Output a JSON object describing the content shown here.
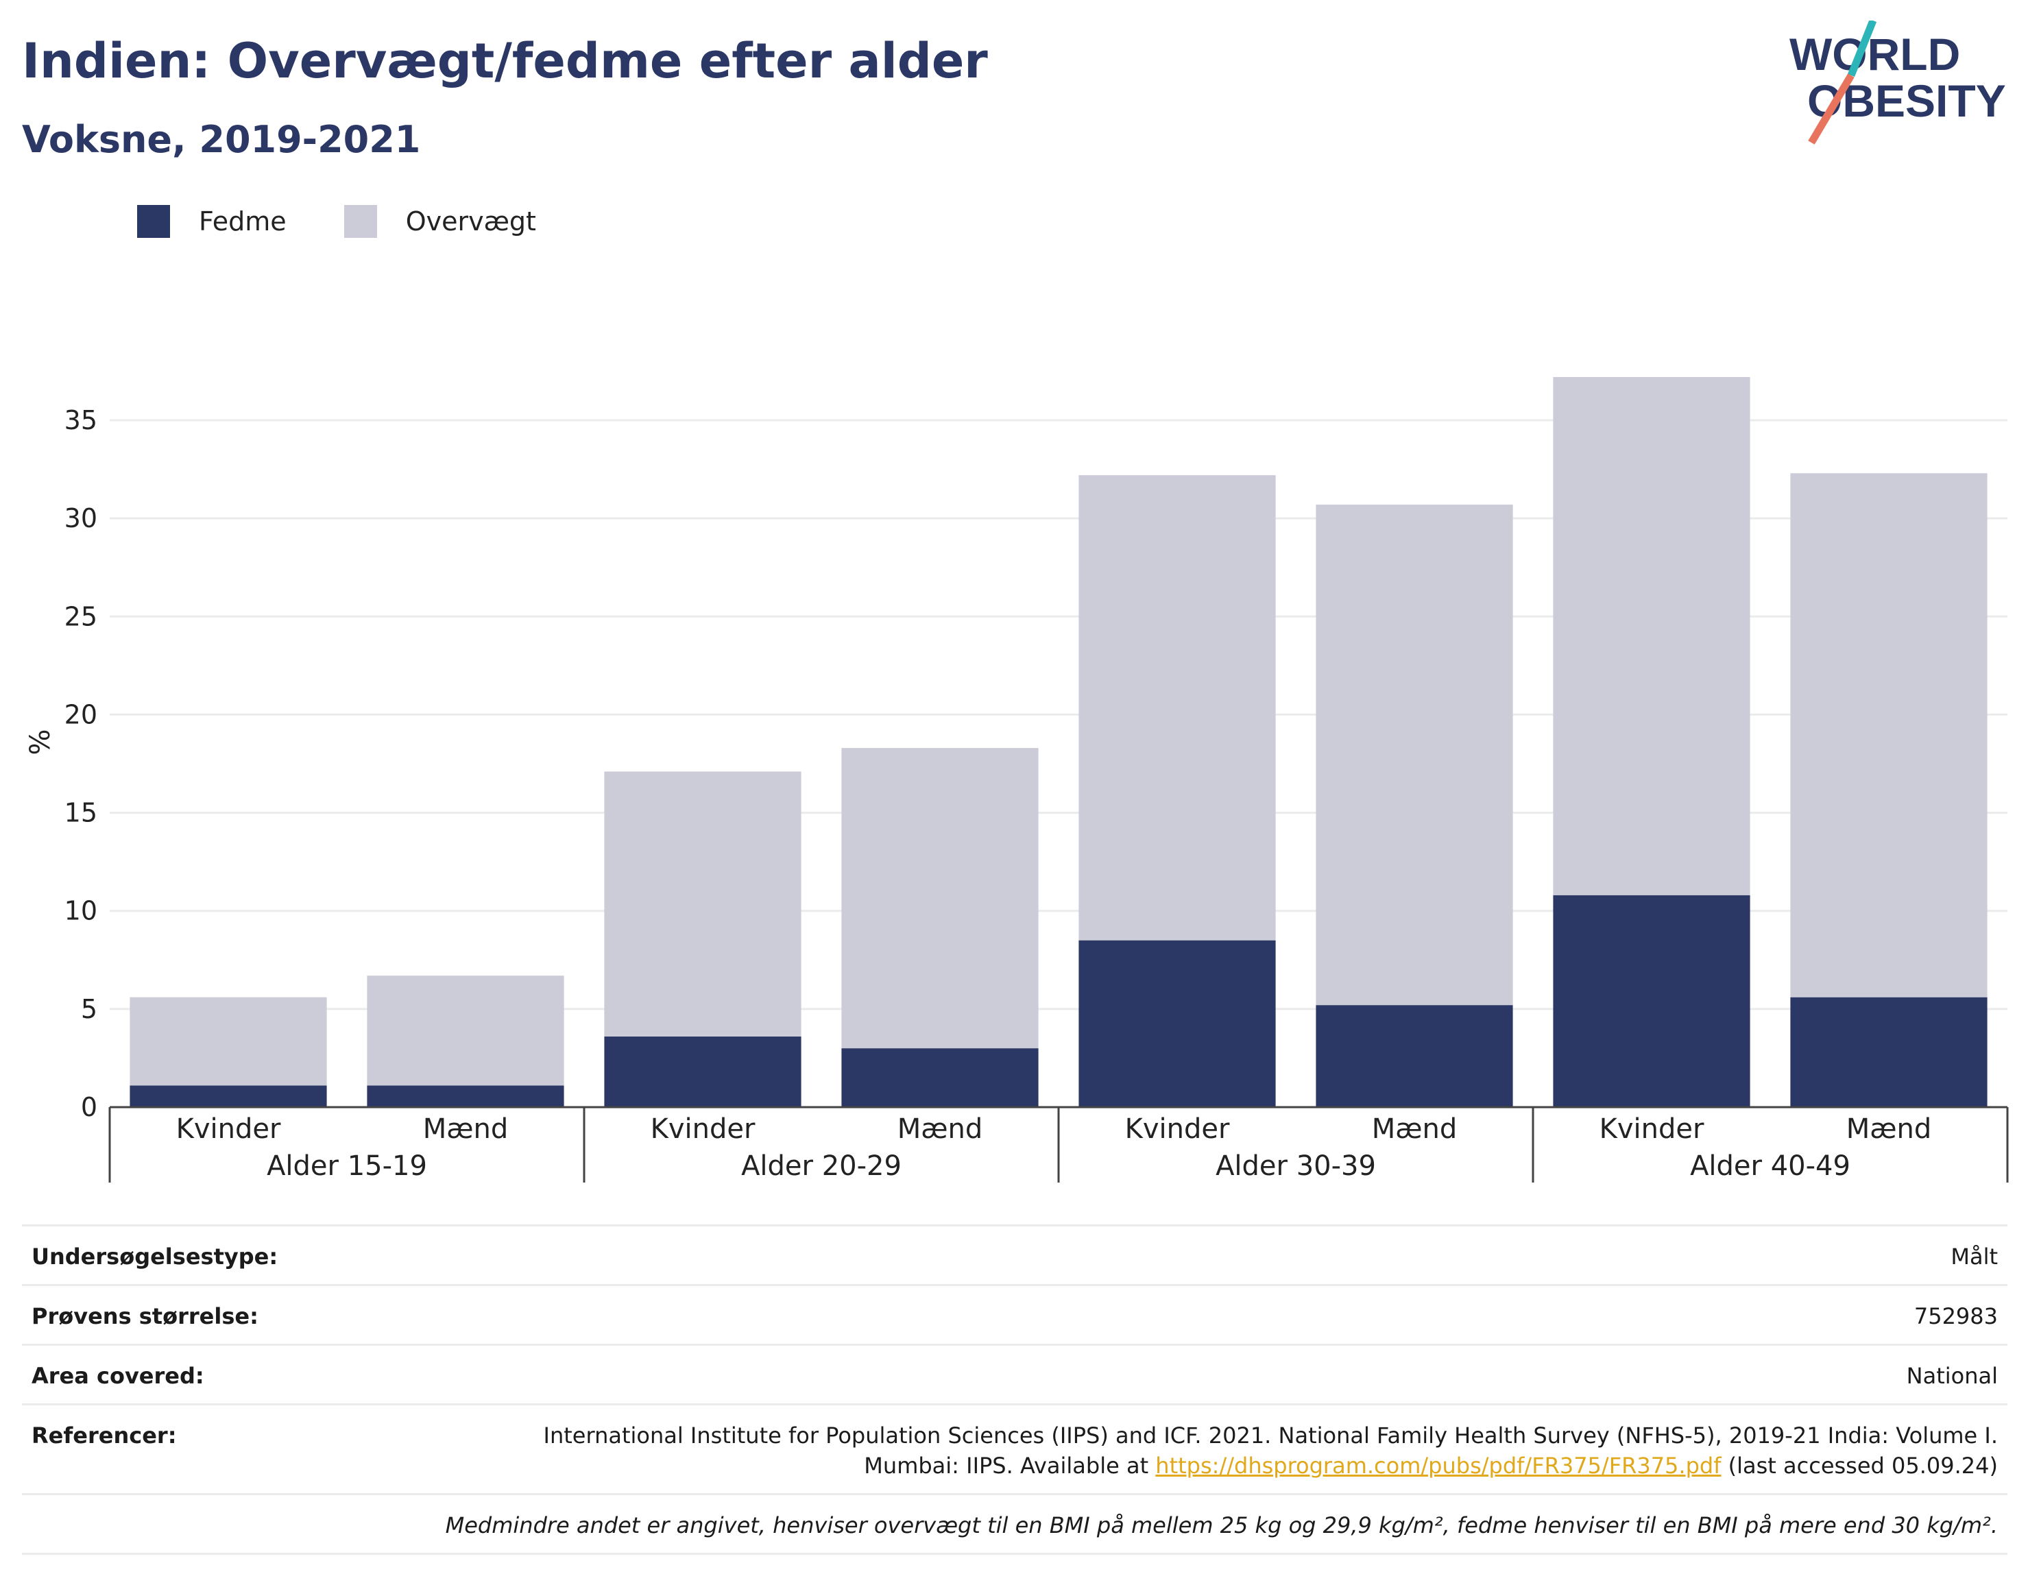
{
  "header": {
    "title": "Indien: Overvægt/fedme efter alder",
    "subtitle": "Voksne, 2019-2021"
  },
  "logo": {
    "line1": "WORLD",
    "line2": "OBESITY",
    "colors": {
      "text": "#2b3765",
      "slash_top": "#2bb5b8",
      "slash_bottom": "#e8745e"
    }
  },
  "legend": {
    "items": [
      {
        "label": "Fedme",
        "color": "#2b3765"
      },
      {
        "label": "Overvægt",
        "color": "#cbccd8"
      }
    ]
  },
  "chart_data": {
    "type": "bar",
    "stacked": true,
    "ylabel": "%",
    "ylim": [
      0,
      37.2
    ],
    "yticks": [
      0,
      5,
      10,
      15,
      20,
      25,
      30,
      35
    ],
    "grid": true,
    "legend_position": "top-left",
    "categories": [
      "Kvinder",
      "Mænd",
      "Kvinder",
      "Mænd",
      "Kvinder",
      "Mænd",
      "Kvinder",
      "Mænd"
    ],
    "groups": [
      "Alder 15-19",
      "Alder 20-29",
      "Alder 30-39",
      "Alder 40-49"
    ],
    "series": [
      {
        "name": "Fedme",
        "color": "#2b3765",
        "values": [
          1.1,
          1.1,
          3.6,
          3.0,
          8.5,
          5.2,
          10.8,
          5.6
        ]
      },
      {
        "name": "Overvægt",
        "color": "#cbccd8",
        "values": [
          4.5,
          5.6,
          13.5,
          15.3,
          23.7,
          25.5,
          26.4,
          26.7
        ]
      }
    ]
  },
  "meta": {
    "survey_type_label": "Undersøgelsestype:",
    "survey_type_value": "Målt",
    "sample_size_label": "Prøvens størrelse:",
    "sample_size_value": "752983",
    "area_label": "Area covered:",
    "area_value": "National",
    "references_label": "Referencer:",
    "references_line1": "International Institute for Population Sciences (IIPS) and ICF. 2021. National Family Health Survey (NFHS-5), 2019-21 India: Volume I.",
    "references_line2_prefix": "Mumbai: IIPS. Available at ",
    "references_link": "https://dhsprogram.com/pubs/pdf/FR375/FR375.pdf",
    "references_line2_suffix": " (last accessed 05.09.24)",
    "note": "Medmindre andet er angivet, henviser overvægt til en BMI på mellem 25 kg og 29,9 kg/m², fedme henviser til en BMI på mere end 30 kg/m²."
  }
}
